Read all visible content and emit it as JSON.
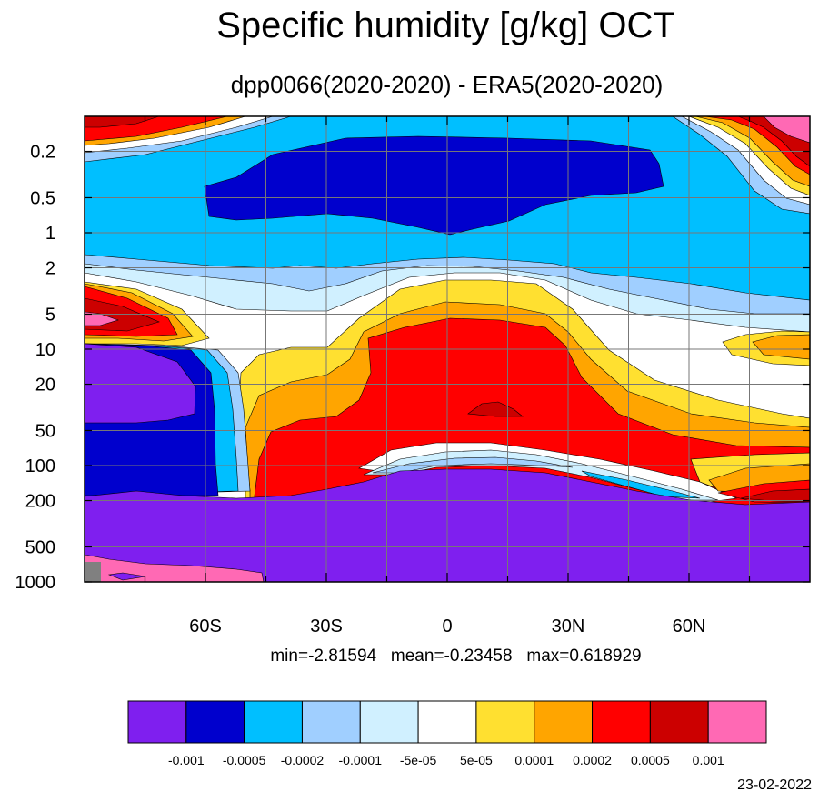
{
  "chart_data": {
    "type": "heatmap",
    "title": "Specific humidity [g/kg] OCT",
    "subtitle": "dpp0066(2020-2020) - ERA5(2020-2020)",
    "x_ticks": [
      "60S",
      "30S",
      "0",
      "30N",
      "60N"
    ],
    "x_tick_values": [
      -60,
      -30,
      0,
      30,
      60
    ],
    "xlim": [
      -90,
      90
    ],
    "y_ticks": [
      "0.2",
      "0.5",
      "1",
      "2",
      "5",
      "10",
      "20",
      "50",
      "100",
      "200",
      "500",
      "1000"
    ],
    "y_tick_values": [
      0.2,
      0.5,
      1,
      2,
      5,
      10,
      20,
      50,
      100,
      200,
      500,
      1000
    ],
    "ylim": [
      0.1,
      1000
    ],
    "y_scale": "log",
    "y_reversed": true,
    "grid": true,
    "stats": "min=-2.81594   mean=-0.23458   max=0.618929",
    "colorbar": {
      "colors": [
        "#7F1FEF",
        "#0000CD",
        "#00BFFF",
        "#A0CFFF",
        "#D0F0FF",
        "#FFFFFF",
        "#FFE030",
        "#FFA500",
        "#FF0000",
        "#CC0000",
        "#FF69B4"
      ],
      "labels": [
        "-0.001",
        "-0.0005",
        "-0.0002",
        "-0.0001",
        "-5e-05",
        "5e-05",
        "0.0001",
        "0.0002",
        "0.0005",
        "0.001"
      ]
    },
    "missing_color": "#808080"
  },
  "date": "23-02-2022"
}
